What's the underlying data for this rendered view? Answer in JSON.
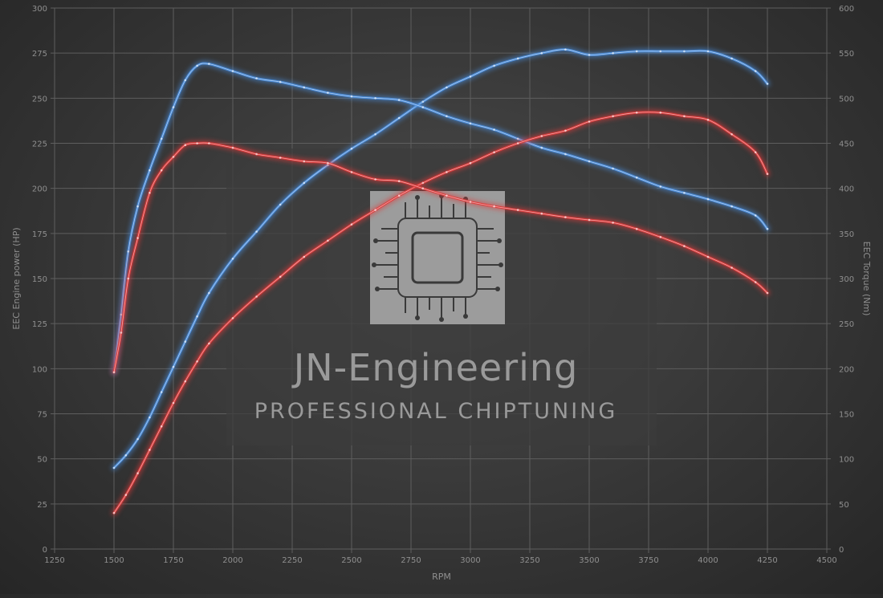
{
  "chart_data": {
    "type": "line",
    "xlabel": "RPM",
    "ylabel_left": "EEC Engine power (HP)",
    "ylabel_right": "EEC Torque (Nm)",
    "xlim": [
      1250,
      4500
    ],
    "ylim_left": [
      0,
      300
    ],
    "ylim_right": [
      0,
      600
    ],
    "x_ticks": [
      1250,
      1500,
      1750,
      2000,
      2250,
      2500,
      2750,
      3000,
      3250,
      3500,
      3750,
      4000,
      4250,
      4500
    ],
    "y_ticks_left": [
      0,
      25,
      50,
      75,
      100,
      125,
      150,
      175,
      200,
      225,
      250,
      275,
      300
    ],
    "y_ticks_right": [
      0,
      50,
      100,
      150,
      200,
      250,
      300,
      350,
      400,
      450,
      500,
      550,
      600
    ],
    "grid": true,
    "colors": {
      "tuned": "#4a8fe0",
      "stock": "#e03a3a",
      "background": "#3a3a3a"
    },
    "series": [
      {
        "axis": "left",
        "color": "#4a8fe0",
        "x": [
          1500,
          1550,
          1600,
          1650,
          1700,
          1750,
          1800,
          1850,
          1900,
          2000,
          2100,
          2200,
          2300,
          2400,
          2500,
          2600,
          2700,
          2800,
          2900,
          3000,
          3100,
          3200,
          3300,
          3400,
          3500,
          3600,
          3700,
          3800,
          3900,
          4000,
          4100,
          4200,
          4250
        ],
        "y": [
          45,
          52,
          61,
          73,
          87,
          101,
          115,
          129,
          142,
          161,
          176,
          191,
          203,
          213,
          222,
          230,
          239,
          248,
          256,
          262,
          268,
          272,
          275,
          277,
          274,
          275,
          276,
          276,
          276,
          276,
          272,
          265,
          258
        ]
      },
      {
        "axis": "right",
        "color": "#4a8fe0",
        "x": [
          1500,
          1530,
          1560,
          1600,
          1650,
          1700,
          1750,
          1800,
          1850,
          1900,
          2000,
          2100,
          2200,
          2300,
          2400,
          2500,
          2600,
          2700,
          2800,
          2900,
          3000,
          3100,
          3200,
          3300,
          3400,
          3500,
          3600,
          3700,
          3800,
          3900,
          4000,
          4100,
          4200,
          4250
        ],
        "y": [
          196,
          260,
          330,
          380,
          420,
          455,
          490,
          520,
          536,
          538,
          530,
          522,
          518,
          512,
          506,
          502,
          500,
          498,
          490,
          480,
          472,
          465,
          455,
          445,
          438,
          430,
          422,
          412,
          402,
          395,
          388,
          380,
          370,
          355
        ]
      },
      {
        "axis": "left",
        "color": "#e03a3a",
        "x": [
          1500,
          1550,
          1600,
          1650,
          1700,
          1750,
          1800,
          1850,
          1900,
          2000,
          2100,
          2200,
          2300,
          2400,
          2500,
          2600,
          2700,
          2800,
          2900,
          3000,
          3100,
          3200,
          3300,
          3400,
          3500,
          3600,
          3700,
          3800,
          3900,
          4000,
          4100,
          4200,
          4250
        ],
        "y": [
          20,
          30,
          42,
          55,
          68,
          81,
          93,
          104,
          114,
          128,
          140,
          151,
          162,
          171,
          180,
          188,
          196,
          203,
          209,
          214,
          220,
          225,
          229,
          232,
          237,
          240,
          242,
          242,
          240,
          238,
          230,
          220,
          208
        ]
      },
      {
        "axis": "right",
        "color": "#e03a3a",
        "x": [
          1500,
          1530,
          1560,
          1600,
          1650,
          1700,
          1750,
          1800,
          1850,
          1900,
          2000,
          2100,
          2200,
          2300,
          2400,
          2500,
          2600,
          2700,
          2800,
          2900,
          3000,
          3100,
          3200,
          3300,
          3400,
          3500,
          3600,
          3700,
          3800,
          3900,
          4000,
          4100,
          4200,
          4250
        ],
        "y": [
          196,
          240,
          300,
          345,
          395,
          420,
          435,
          448,
          450,
          450,
          445,
          438,
          434,
          430,
          428,
          418,
          410,
          408,
          400,
          392,
          385,
          380,
          376,
          372,
          368,
          365,
          362,
          355,
          346,
          336,
          324,
          312,
          296,
          284
        ]
      }
    ]
  },
  "watermark": {
    "title": "JN-Engineering",
    "subtitle": "PROFESSIONAL CHIPTUNING",
    "logo_icon": "circuit-chip-icon"
  }
}
